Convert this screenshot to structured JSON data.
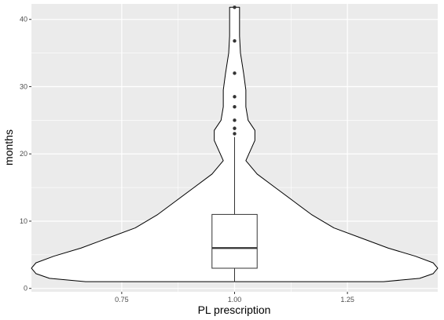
{
  "chart_data": {
    "type": "violin",
    "xlabel": "PL prescription",
    "ylabel": "months",
    "x_ticks": [
      0.75,
      1.0,
      1.25
    ],
    "x_tick_labels": [
      "0.75",
      "1.00",
      "1.25"
    ],
    "y_ticks": [
      0,
      10,
      20,
      30,
      40
    ],
    "y_tick_labels": [
      "0",
      "10",
      "20",
      "30",
      "40"
    ],
    "xlim": [
      0.55,
      1.45
    ],
    "ylim": [
      -0.5,
      42.3
    ],
    "grid": true,
    "panel_background": "#ebebeb",
    "grid_color": "#ffffff",
    "violin": {
      "x": 1.0,
      "fill": "#ffffff",
      "stroke": "#000000",
      "profile": [
        {
          "y": 1.0,
          "half_width": 0.33
        },
        {
          "y": 1.5,
          "half_width": 0.41
        },
        {
          "y": 2.2,
          "half_width": 0.44
        },
        {
          "y": 3.0,
          "half_width": 0.45
        },
        {
          "y": 3.8,
          "half_width": 0.44
        },
        {
          "y": 4.8,
          "half_width": 0.4
        },
        {
          "y": 6.0,
          "half_width": 0.34
        },
        {
          "y": 7.5,
          "half_width": 0.28
        },
        {
          "y": 9.0,
          "half_width": 0.22
        },
        {
          "y": 11.0,
          "half_width": 0.17
        },
        {
          "y": 13.0,
          "half_width": 0.13
        },
        {
          "y": 15.0,
          "half_width": 0.09
        },
        {
          "y": 17.0,
          "half_width": 0.05
        },
        {
          "y": 19.0,
          "half_width": 0.025
        },
        {
          "y": 20.5,
          "half_width": 0.035
        },
        {
          "y": 22.0,
          "half_width": 0.045
        },
        {
          "y": 23.5,
          "half_width": 0.045
        },
        {
          "y": 25.0,
          "half_width": 0.03
        },
        {
          "y": 27.0,
          "half_width": 0.025
        },
        {
          "y": 29.5,
          "half_width": 0.025
        },
        {
          "y": 32.0,
          "half_width": 0.02
        },
        {
          "y": 35.0,
          "half_width": 0.013
        },
        {
          "y": 37.5,
          "half_width": 0.011
        },
        {
          "y": 40.0,
          "half_width": 0.011
        },
        {
          "y": 41.8,
          "half_width": 0.011
        }
      ]
    },
    "boxplot": {
      "x": 1.0,
      "half_width": 0.05,
      "q1": 3.0,
      "median": 6.0,
      "q3": 11.0,
      "whisker_low": 1.0,
      "whisker_high": 22.5,
      "outliers": [
        23.0,
        23.8,
        25.0,
        27.0,
        28.5,
        32.0,
        36.8,
        41.8
      ]
    }
  }
}
